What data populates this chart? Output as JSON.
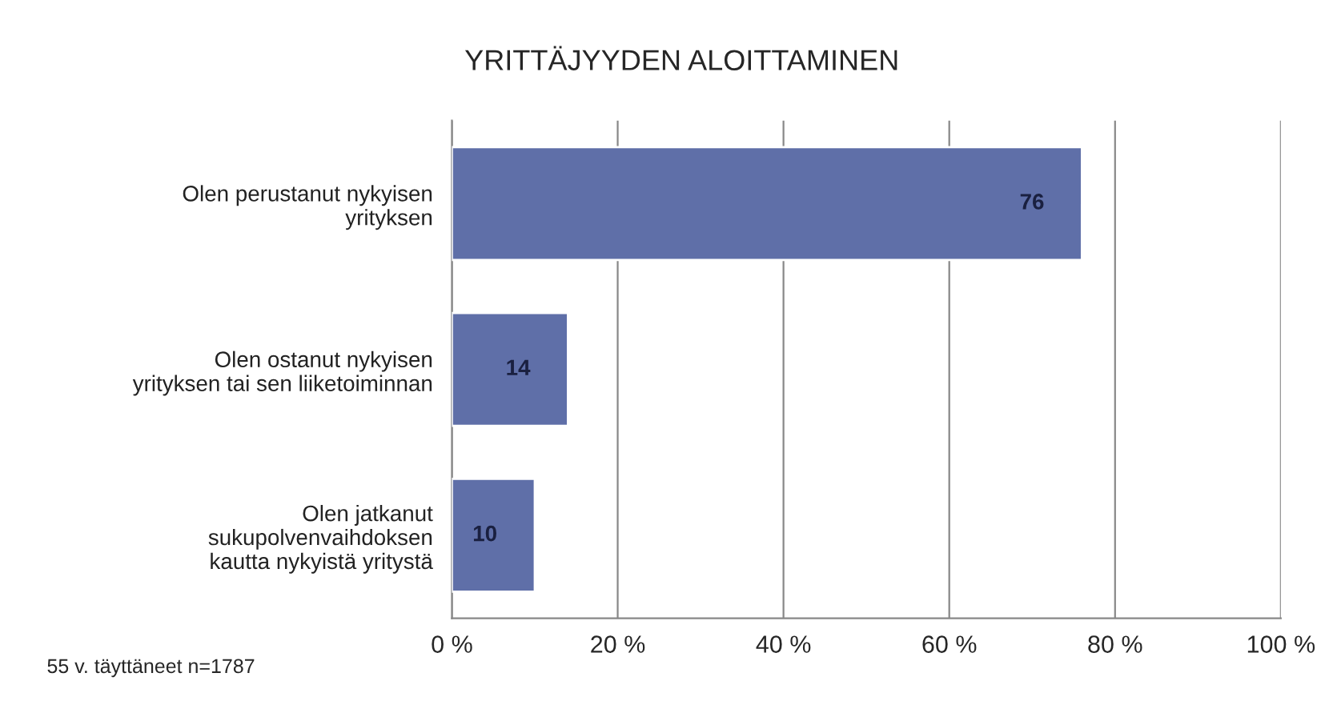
{
  "chart_data": {
    "type": "bar",
    "orientation": "horizontal",
    "title": "YRITTÄJYYDEN ALOITTAMINEN",
    "categories": [
      "Olen perustanut nykyisen\nyrityksen",
      "Olen ostanut nykyisen\nyrityksen tai sen liiketoiminnan",
      "Olen jatkanut\nsukupolvenvaihdoksen\nkautta nykyistä yritystä"
    ],
    "values": [
      76,
      14,
      10
    ],
    "color": "#5f6fa8",
    "data_labels": true,
    "xlim": [
      0,
      100
    ],
    "xticks": [
      {
        "value": 0,
        "label": "0 %"
      },
      {
        "value": 20,
        "label": "20 %"
      },
      {
        "value": 40,
        "label": "40 %"
      },
      {
        "value": 60,
        "label": "60 %"
      },
      {
        "value": 80,
        "label": "80 %"
      },
      {
        "value": 100,
        "label": "100 %"
      }
    ],
    "grid": "x",
    "legend": false,
    "annotations": [
      "55 v. täyttäneet n=1787"
    ]
  }
}
